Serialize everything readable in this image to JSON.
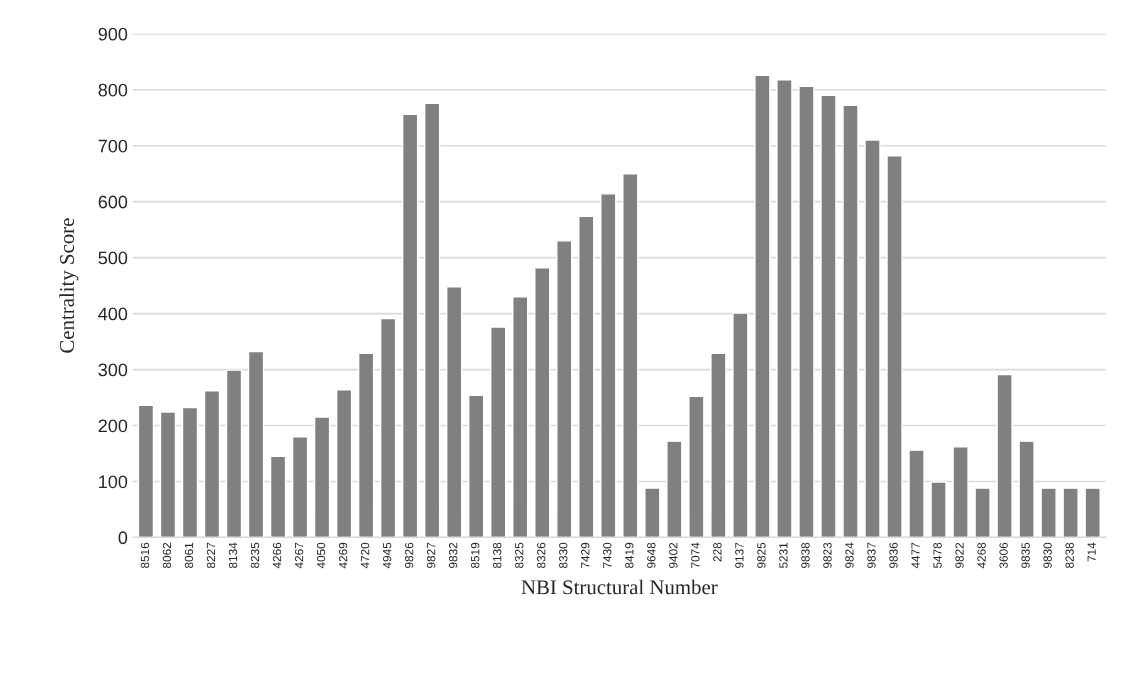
{
  "chart_data": {
    "type": "bar",
    "xlabel": "NBI Structural Number",
    "ylabel": "Centrality Score",
    "categories": [
      "8516",
      "8062",
      "8061",
      "8227",
      "8134",
      "8235",
      "4266",
      "4267",
      "4050",
      "4269",
      "4720",
      "4945",
      "9826",
      "9827",
      "9832",
      "8519",
      "8138",
      "8325",
      "8326",
      "8330",
      "7429",
      "7430",
      "8419",
      "9648",
      "9402",
      "7074",
      "228",
      "9137",
      "9825",
      "5231",
      "9838",
      "9823",
      "9824",
      "9837",
      "9836",
      "4477",
      "5478",
      "9822",
      "4268",
      "3606",
      "9835",
      "9830",
      "8238",
      "714"
    ],
    "values": [
      236,
      224,
      232,
      262,
      299,
      332,
      145,
      180,
      215,
      264,
      329,
      391,
      756,
      776,
      448,
      254,
      376,
      430,
      482,
      530,
      574,
      614,
      650,
      88,
      172,
      252,
      329,
      401,
      826,
      818,
      806,
      790,
      772,
      710,
      682,
      156,
      99,
      162,
      88,
      291,
      172,
      88,
      88,
      88
    ],
    "color": "#808080",
    "ylim": [
      0,
      900
    ],
    "yticks": [
      0,
      100,
      200,
      300,
      400,
      500,
      600,
      700,
      800,
      900
    ],
    "grid": "y"
  }
}
